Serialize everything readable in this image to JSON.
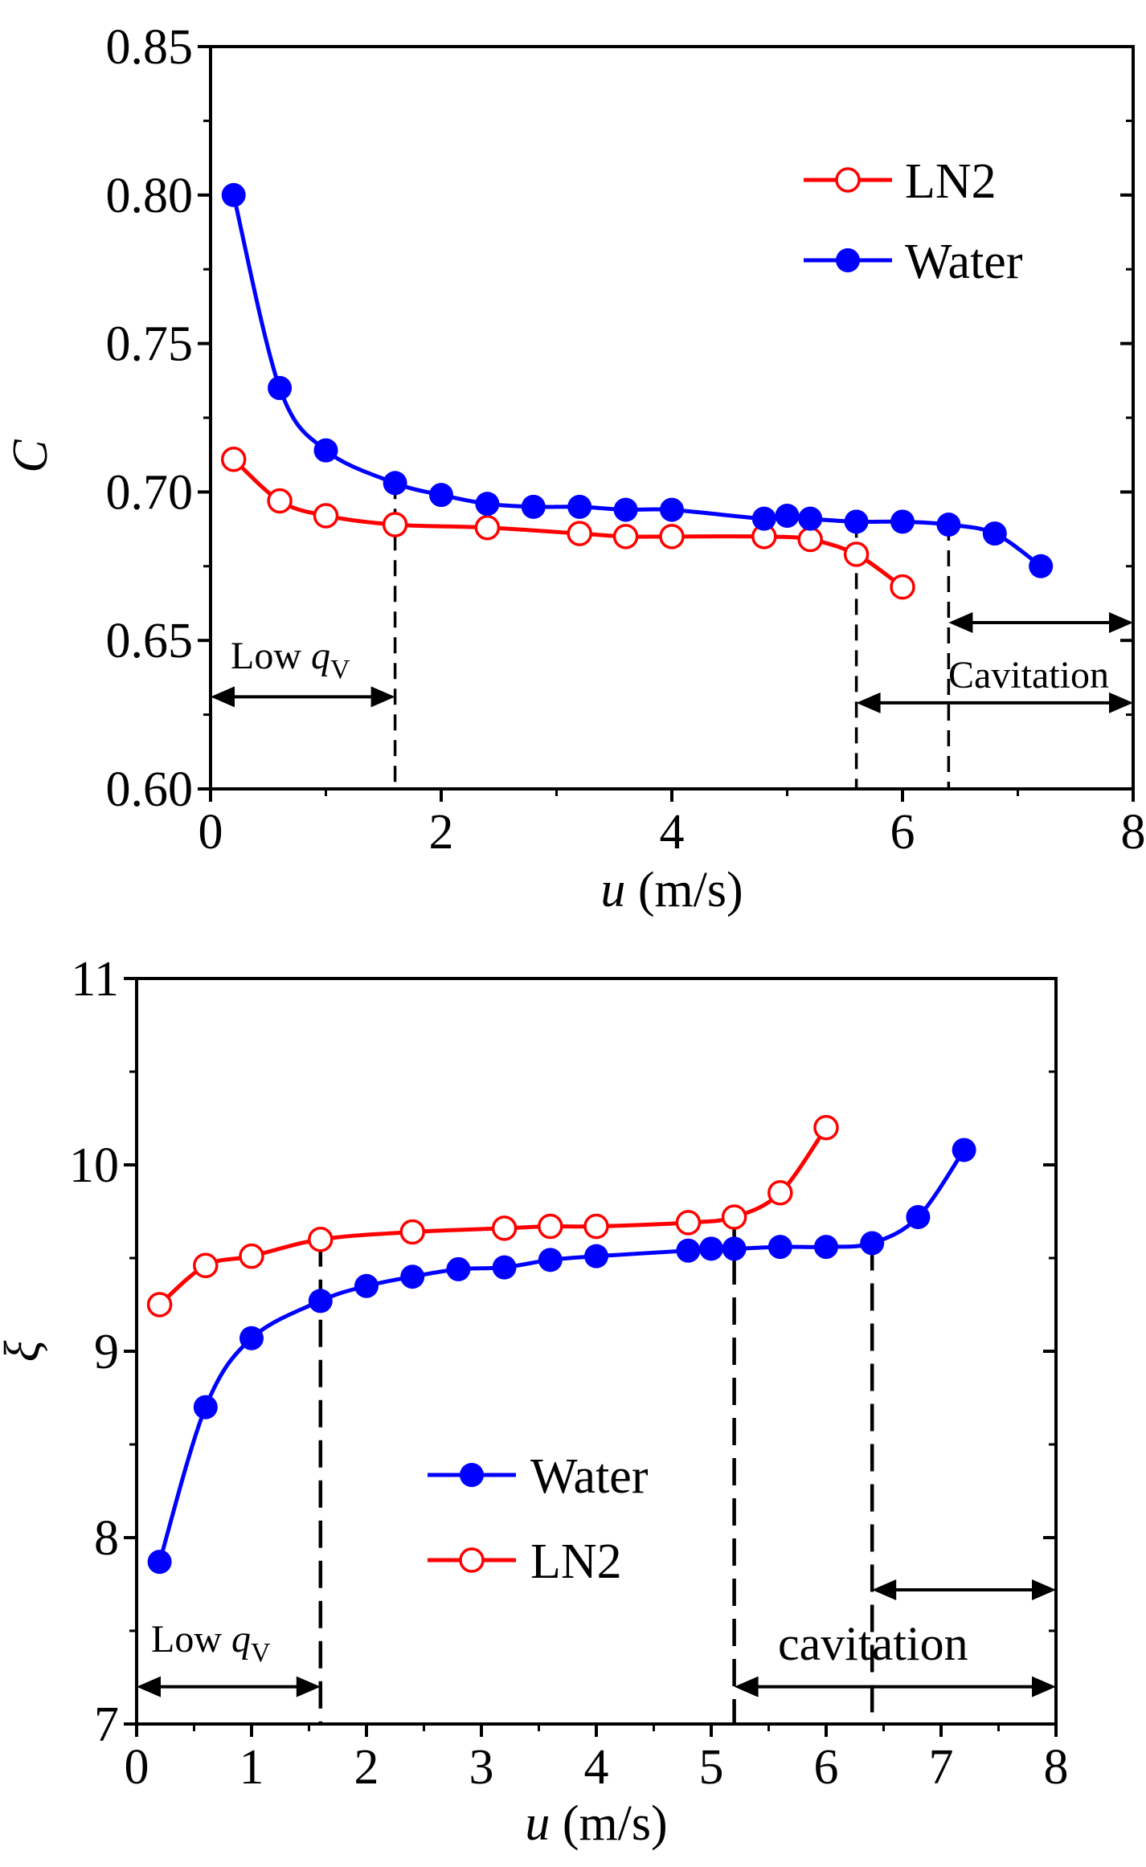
{
  "chart_data": [
    {
      "type": "line",
      "title": "",
      "xlabel_var": "u",
      "xlabel_unit": " (m/s)",
      "ylabel": "C",
      "xlim": [
        0,
        8
      ],
      "ylim": [
        0.6,
        0.85
      ],
      "xticks": [
        0,
        2,
        4,
        6,
        8
      ],
      "xtick_labels": [
        "0",
        "2",
        "4",
        "6",
        "8"
      ],
      "yticks": [
        0.6,
        0.65,
        0.7,
        0.75,
        0.8,
        0.85
      ],
      "ytick_labels": [
        "0.60",
        "0.65",
        "0.70",
        "0.75",
        "0.80",
        "0.85"
      ],
      "legend": [
        "LN2",
        "Water"
      ],
      "series": [
        {
          "name": "LN2",
          "color": "#ff0000",
          "marker": "open-circle",
          "x": [
            0.2,
            0.6,
            1.0,
            1.6,
            2.4,
            3.2,
            3.6,
            4.0,
            4.8,
            5.2,
            5.6,
            6.0
          ],
          "y": [
            0.711,
            0.697,
            0.692,
            0.689,
            0.688,
            0.686,
            0.685,
            0.685,
            0.685,
            0.684,
            0.679,
            0.668
          ]
        },
        {
          "name": "Water",
          "color": "#0000ff",
          "marker": "filled-circle",
          "x": [
            0.2,
            0.6,
            1.0,
            1.6,
            2.0,
            2.4,
            2.8,
            3.2,
            3.6,
            4.0,
            4.8,
            5.0,
            5.2,
            5.6,
            6.0,
            6.4,
            6.8,
            7.2
          ],
          "y": [
            0.8,
            0.735,
            0.714,
            0.703,
            0.699,
            0.696,
            0.695,
            0.695,
            0.694,
            0.694,
            0.691,
            0.692,
            0.691,
            0.69,
            0.69,
            0.689,
            0.686,
            0.675
          ]
        }
      ],
      "vlines": [
        1.6,
        5.6,
        6.4
      ],
      "annotations": [
        {
          "text_main": "Low ",
          "text_var": "q",
          "text_sub": "V"
        },
        {
          "text": "Cavitation"
        }
      ],
      "arrows": [
        {
          "from": 0,
          "to": 1.6,
          "y": 0.631
        },
        {
          "from": 5.6,
          "to": 8,
          "y": 0.629
        },
        {
          "from": 6.4,
          "to": 8,
          "y": 0.656
        }
      ]
    },
    {
      "type": "line",
      "title": "",
      "xlabel_var": "u",
      "xlabel_unit": " (m/s)",
      "ylabel": "ξ",
      "xlim": [
        0,
        8
      ],
      "ylim": [
        7,
        11
      ],
      "xticks": [
        0,
        1,
        2,
        3,
        4,
        5,
        6,
        7,
        8
      ],
      "xtick_labels": [
        "0",
        "1",
        "2",
        "3",
        "4",
        "5",
        "6",
        "7",
        "8"
      ],
      "yticks": [
        7,
        8,
        9,
        10,
        11
      ],
      "ytick_labels": [
        "7",
        "8",
        "9",
        "10",
        "11"
      ],
      "legend": [
        "Water",
        "LN2"
      ],
      "series": [
        {
          "name": "Water",
          "color": "#0000ff",
          "marker": "filled-circle",
          "x": [
            0.2,
            0.6,
            1.0,
            1.6,
            2.0,
            2.4,
            2.8,
            3.2,
            3.6,
            4.0,
            4.8,
            5.0,
            5.2,
            5.6,
            6.0,
            6.4,
            6.8,
            7.2
          ],
          "y": [
            7.87,
            8.7,
            9.07,
            9.27,
            9.35,
            9.4,
            9.44,
            9.45,
            9.49,
            9.51,
            9.54,
            9.55,
            9.55,
            9.56,
            9.56,
            9.58,
            9.72,
            10.08
          ]
        },
        {
          "name": "LN2",
          "color": "#ff0000",
          "marker": "open-circle",
          "x": [
            0.2,
            0.6,
            1.0,
            1.6,
            2.4,
            3.2,
            3.6,
            4.0,
            4.8,
            5.2,
            5.6,
            6.0
          ],
          "y": [
            9.25,
            9.46,
            9.51,
            9.6,
            9.64,
            9.66,
            9.67,
            9.67,
            9.69,
            9.72,
            9.85,
            10.2
          ]
        }
      ],
      "vlines": [
        1.6,
        5.2,
        6.4
      ],
      "annotations": [
        {
          "text_main": "Low ",
          "text_var": "q",
          "text_sub": "V"
        },
        {
          "text": "cavitation"
        }
      ],
      "arrows": [
        {
          "from": 0,
          "to": 1.6,
          "y": 7.2
        },
        {
          "from": 5.2,
          "to": 8,
          "y": 7.2
        },
        {
          "from": 6.4,
          "to": 8,
          "y": 7.72
        }
      ]
    }
  ]
}
